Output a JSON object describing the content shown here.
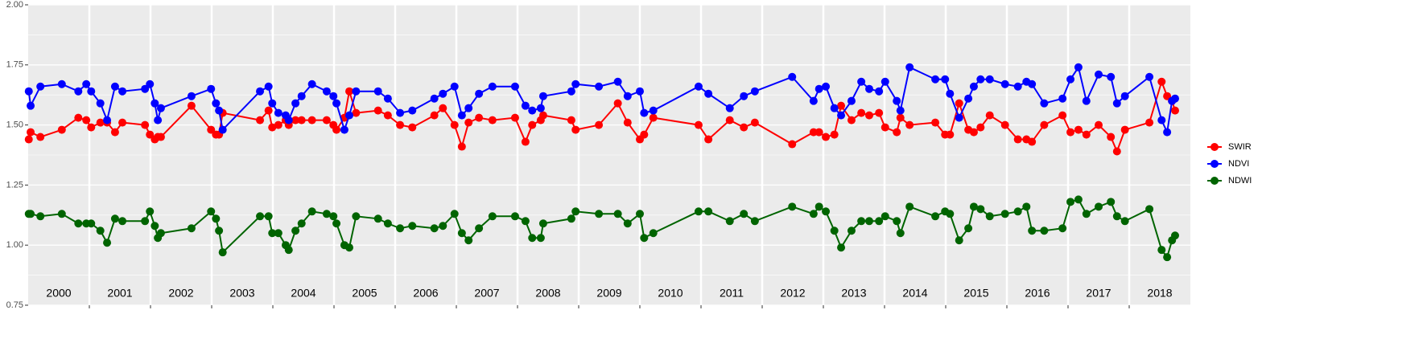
{
  "chart_data": {
    "type": "line",
    "x": [
      2000.01,
      2000.04,
      2000.2,
      2000.55,
      2000.82,
      2000.95,
      2001.03,
      2001.18,
      2001.29,
      2001.42,
      2001.54,
      2001.91,
      2001.99,
      2002.07,
      2002.12,
      2002.17,
      2002.67,
      2002.99,
      2003.07,
      2003.12,
      2003.18,
      2003.79,
      2003.93,
      2003.99,
      2004.09,
      2004.21,
      2004.26,
      2004.37,
      2004.47,
      2004.64,
      2004.88,
      2004.99,
      2005.04,
      2005.17,
      2005.25,
      2005.36,
      2005.72,
      2005.88,
      2006.08,
      2006.28,
      2006.64,
      2006.78,
      2006.97,
      2007.09,
      2007.2,
      2007.37,
      2007.59,
      2007.96,
      2008.13,
      2008.24,
      2008.38,
      2008.42,
      2008.88,
      2008.95,
      2009.33,
      2009.64,
      2009.8,
      2010.0,
      2010.07,
      2010.22,
      2010.96,
      2011.12,
      2011.47,
      2011.7,
      2011.88,
      2012.49,
      2012.84,
      2012.93,
      2013.04,
      2013.18,
      2013.29,
      2013.46,
      2013.62,
      2013.75,
      2013.91,
      2014.01,
      2014.2,
      2014.26,
      2014.41,
      2014.83,
      2014.99,
      2015.07,
      2015.22,
      2015.37,
      2015.46,
      2015.57,
      2015.72,
      2015.97,
      2016.18,
      2016.32,
      2016.41,
      2016.61,
      2016.91,
      2017.04,
      2017.17,
      2017.3,
      2017.5,
      2017.7,
      2017.8,
      2017.93,
      2018.33,
      2018.53,
      2018.62,
      2018.7,
      2018.75
    ],
    "series": [
      {
        "name": "SWIR",
        "color": "#ff0000",
        "values": [
          1.44,
          1.47,
          1.45,
          1.48,
          1.53,
          1.52,
          1.49,
          1.51,
          1.51,
          1.47,
          1.51,
          1.5,
          1.46,
          1.44,
          1.45,
          1.45,
          1.58,
          1.48,
          1.46,
          1.46,
          1.55,
          1.52,
          1.56,
          1.49,
          1.5,
          1.52,
          1.5,
          1.52,
          1.52,
          1.52,
          1.52,
          1.5,
          1.48,
          1.53,
          1.64,
          1.55,
          1.56,
          1.54,
          1.5,
          1.49,
          1.54,
          1.57,
          1.5,
          1.41,
          1.51,
          1.53,
          1.52,
          1.53,
          1.43,
          1.5,
          1.52,
          1.54,
          1.52,
          1.48,
          1.5,
          1.59,
          1.51,
          1.44,
          1.46,
          1.53,
          1.5,
          1.44,
          1.52,
          1.49,
          1.51,
          1.42,
          1.47,
          1.47,
          1.45,
          1.46,
          1.58,
          1.52,
          1.55,
          1.54,
          1.55,
          1.49,
          1.47,
          1.53,
          1.5,
          1.51,
          1.46,
          1.46,
          1.59,
          1.48,
          1.47,
          1.49,
          1.54,
          1.5,
          1.44,
          1.44,
          1.43,
          1.5,
          1.54,
          1.47,
          1.48,
          1.46,
          1.5,
          1.45,
          1.39,
          1.48,
          1.51,
          1.68,
          1.62,
          1.6,
          1.56
        ]
      },
      {
        "name": "NDVI",
        "color": "#0000ff",
        "values": [
          1.64,
          1.58,
          1.66,
          1.67,
          1.64,
          1.67,
          1.64,
          1.59,
          1.52,
          1.66,
          1.64,
          1.65,
          1.67,
          1.59,
          1.52,
          1.57,
          1.62,
          1.65,
          1.59,
          1.56,
          1.48,
          1.64,
          1.66,
          1.59,
          1.55,
          1.54,
          1.52,
          1.59,
          1.62,
          1.67,
          1.64,
          1.62,
          1.59,
          1.48,
          1.54,
          1.64,
          1.64,
          1.61,
          1.55,
          1.56,
          1.61,
          1.63,
          1.66,
          1.54,
          1.57,
          1.63,
          1.66,
          1.66,
          1.58,
          1.56,
          1.57,
          1.62,
          1.64,
          1.67,
          1.66,
          1.68,
          1.62,
          1.64,
          1.55,
          1.56,
          1.66,
          1.63,
          1.57,
          1.62,
          1.64,
          1.7,
          1.6,
          1.65,
          1.66,
          1.57,
          1.54,
          1.6,
          1.68,
          1.65,
          1.64,
          1.68,
          1.6,
          1.56,
          1.74,
          1.69,
          1.69,
          1.63,
          1.53,
          1.61,
          1.66,
          1.69,
          1.69,
          1.67,
          1.66,
          1.68,
          1.67,
          1.59,
          1.61,
          1.69,
          1.74,
          1.6,
          1.71,
          1.7,
          1.59,
          1.62,
          1.7,
          1.52,
          1.47,
          1.6,
          1.61
        ]
      },
      {
        "name": "NDWI",
        "color": "#006400",
        "values": [
          1.13,
          1.13,
          1.12,
          1.13,
          1.09,
          1.09,
          1.09,
          1.06,
          1.01,
          1.11,
          1.1,
          1.1,
          1.14,
          1.08,
          1.03,
          1.05,
          1.07,
          1.14,
          1.11,
          1.06,
          0.97,
          1.12,
          1.12,
          1.05,
          1.05,
          1.0,
          0.98,
          1.06,
          1.09,
          1.14,
          1.13,
          1.12,
          1.09,
          1.0,
          0.99,
          1.12,
          1.11,
          1.09,
          1.07,
          1.08,
          1.07,
          1.08,
          1.13,
          1.05,
          1.02,
          1.07,
          1.12,
          1.12,
          1.1,
          1.03,
          1.03,
          1.09,
          1.11,
          1.14,
          1.13,
          1.13,
          1.09,
          1.13,
          1.03,
          1.05,
          1.14,
          1.14,
          1.1,
          1.13,
          1.1,
          1.16,
          1.13,
          1.16,
          1.14,
          1.06,
          0.99,
          1.06,
          1.1,
          1.1,
          1.1,
          1.12,
          1.1,
          1.05,
          1.16,
          1.12,
          1.14,
          1.13,
          1.02,
          1.07,
          1.16,
          1.15,
          1.12,
          1.13,
          1.14,
          1.16,
          1.06,
          1.06,
          1.07,
          1.18,
          1.19,
          1.13,
          1.16,
          1.18,
          1.12,
          1.1,
          1.15,
          0.98,
          0.95,
          1.02,
          1.04
        ]
      }
    ],
    "xlim": [
      2000,
      2019
    ],
    "xticks": [
      2001,
      2002,
      2003,
      2004,
      2005,
      2006,
      2007,
      2008,
      2009,
      2010,
      2011,
      2012,
      2013,
      2014,
      2015,
      2016,
      2017,
      2018
    ],
    "year_labels": [
      "2000",
      "2001",
      "2002",
      "2003",
      "2004",
      "2005",
      "2006",
      "2007",
      "2008",
      "2009",
      "2010",
      "2011",
      "2012",
      "2013",
      "2014",
      "2015",
      "2016",
      "2017",
      "2018"
    ],
    "ylim": [
      0.75,
      2.0
    ],
    "yticks": [
      0.75,
      {
        "value": 1.0,
        "label": "1.00"
      },
      1.25,
      {
        "value": 1.5,
        "label": "1.50"
      },
      1.75,
      {
        "value": 2.0,
        "label": "2.00"
      }
    ],
    "grid": true,
    "legend": "right"
  }
}
